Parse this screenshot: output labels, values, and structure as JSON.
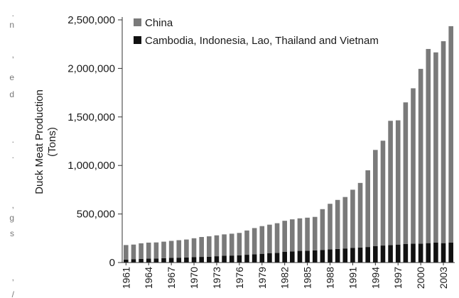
{
  "background_fragments": [
    ".",
    "n",
    ",",
    "e",
    "d",
    ".",
    ".",
    ",",
    "g",
    "s",
    ",",
    "/"
  ],
  "chart_data": {
    "type": "bar",
    "title": "",
    "xlabel": "",
    "ylabel": "Duck Meat Production (Tons)",
    "ylabel_lines": [
      "Duck Meat Production",
      "(Tons)"
    ],
    "ylim": [
      0,
      2500000
    ],
    "yticks": [
      0,
      500000,
      1000000,
      1500000,
      2000000,
      2500000
    ],
    "ytick_labels": [
      "0",
      "500,000",
      "1,000,000",
      "1,500,000",
      "2,000,000",
      "2,500,000"
    ],
    "xtick_labels": [
      "1961",
      "1964",
      "1967",
      "1970",
      "1973",
      "1976",
      "1979",
      "1982",
      "1985",
      "1988",
      "1991",
      "1994",
      "1997",
      "2000",
      "2003"
    ],
    "legend_position": "top-left",
    "grid": false,
    "colors": {
      "China": "#7a7a7a",
      "Other": "#111111"
    },
    "categories": [
      "1961",
      "1962",
      "1963",
      "1964",
      "1965",
      "1966",
      "1967",
      "1968",
      "1969",
      "1970",
      "1971",
      "1972",
      "1973",
      "1974",
      "1975",
      "1976",
      "1977",
      "1978",
      "1979",
      "1980",
      "1981",
      "1982",
      "1983",
      "1984",
      "1985",
      "1986",
      "1987",
      "1988",
      "1989",
      "1990",
      "1991",
      "1992",
      "1993",
      "1994",
      "1995",
      "1996",
      "1997",
      "1998",
      "1999",
      "2000",
      "2001",
      "2002",
      "2003",
      "2004"
    ],
    "series": [
      {
        "name": "China",
        "values": [
          150000,
          150000,
          160000,
          165000,
          165000,
          170000,
          175000,
          180000,
          185000,
          195000,
          205000,
          210000,
          215000,
          220000,
          225000,
          230000,
          250000,
          270000,
          285000,
          295000,
          305000,
          320000,
          330000,
          335000,
          340000,
          345000,
          420000,
          470000,
          505000,
          530000,
          600000,
          665000,
          790000,
          990000,
          1080000,
          1280000,
          1280000,
          1460000,
          1600000,
          1800000,
          2000000,
          1960000,
          2080000,
          2230000
        ]
      },
      {
        "name": "Cambodia, Indonesia, Lao, Thailand and Vietnam",
        "values": [
          30000,
          35000,
          38000,
          40000,
          42000,
          45000,
          48000,
          50000,
          52000,
          55000,
          58000,
          60000,
          65000,
          70000,
          72000,
          75000,
          80000,
          85000,
          90000,
          95000,
          100000,
          110000,
          115000,
          120000,
          122000,
          125000,
          130000,
          135000,
          140000,
          145000,
          150000,
          155000,
          160000,
          170000,
          175000,
          180000,
          185000,
          190000,
          195000,
          195000,
          200000,
          205000,
          200000,
          205000
        ]
      }
    ]
  }
}
